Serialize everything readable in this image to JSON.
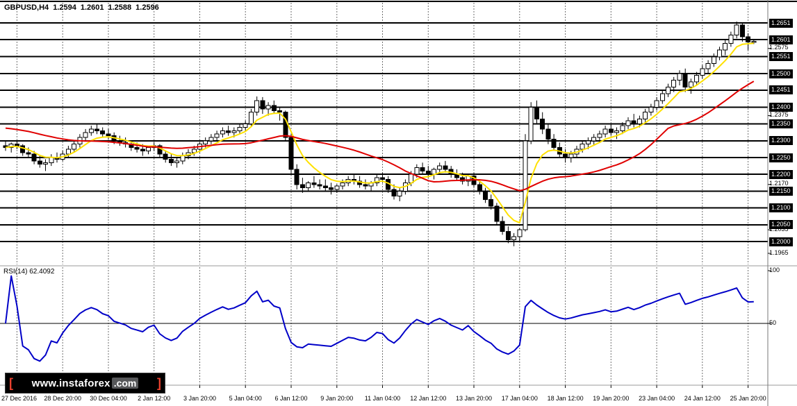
{
  "header": {
    "symbol_period": "GBPUSD,H4",
    "open": "1.2594",
    "high": "1.2601",
    "low": "1.2588",
    "close": "1.2596"
  },
  "price_axis": {
    "labels": [
      {
        "text": "1.2651",
        "price": 1.2651,
        "boxed": true
      },
      {
        "text": "1.2601",
        "price": 1.2601,
        "boxed": true
      },
      {
        "text": "1.2575",
        "price": 1.2575,
        "boxed": false
      },
      {
        "text": "1.2551",
        "price": 1.2551,
        "boxed": true
      },
      {
        "text": "1.2500",
        "price": 1.25,
        "boxed": true
      },
      {
        "text": "1.2451",
        "price": 1.2451,
        "boxed": true
      },
      {
        "text": "1.2400",
        "price": 1.24,
        "boxed": true
      },
      {
        "text": "1.2375",
        "price": 1.2375,
        "boxed": false
      },
      {
        "text": "1.2350",
        "price": 1.235,
        "boxed": true
      },
      {
        "text": "1.2300",
        "price": 1.23,
        "boxed": true
      },
      {
        "text": "1.2250",
        "price": 1.225,
        "boxed": true
      },
      {
        "text": "1.2200",
        "price": 1.22,
        "boxed": true
      },
      {
        "text": "1.2170",
        "price": 1.217,
        "boxed": false
      },
      {
        "text": "1.2150",
        "price": 1.215,
        "boxed": true
      },
      {
        "text": "1.2100",
        "price": 1.21,
        "boxed": true
      },
      {
        "text": "1.2050",
        "price": 1.205,
        "boxed": true
      },
      {
        "text": "1.2035",
        "price": 1.2035,
        "boxed": false
      },
      {
        "text": "1.2000",
        "price": 1.2,
        "boxed": true
      },
      {
        "text": "1.1965",
        "price": 1.1965,
        "boxed": false
      }
    ]
  },
  "time_axis": {
    "labels": [
      "27 Dec 2016",
      "28 Dec 20:00",
      "30 Dec 04:00",
      "2 Jan 12:00",
      "3 Jan 20:00",
      "5 Jan 04:00",
      "6 Jan 12:00",
      "9 Jan 20:00",
      "11 Jan 04:00",
      "12 Jan 12:00",
      "13 Jan 20:00",
      "17 Jan 04:00",
      "18 Jan 12:00",
      "19 Jan 20:00",
      "23 Jan 04:00",
      "24 Jan 12:00",
      "25 Jan 20:00"
    ]
  },
  "rsi": {
    "label": "RSI(14) 62.4092",
    "value": 62.4092,
    "period": 14,
    "mid_level": 50,
    "axis_labels": [
      {
        "text": "100",
        "value": 100
      },
      {
        "text": "50",
        "value": 50
      }
    ]
  },
  "logo": {
    "bracket_left": "[",
    "domain": "www.instaforex",
    "tld": ".com",
    "bracket_right": "]"
  },
  "colors": {
    "background": "#FFFFFF",
    "foreground": "#000000",
    "grid": "#6e6e6e",
    "bull": "#FFFFFF",
    "bear": "#000000",
    "level_line": "#000000",
    "ma_fast": "#FFE100",
    "ma_slow": "#E00000",
    "rsi_line": "#0000C8",
    "axis_box_bg": "#000000",
    "axis_box_text": "#FFFFFF",
    "logo_accent": "#E8402E"
  },
  "chart_data": {
    "type": "candlestick",
    "title": "GBPUSD,H4",
    "symbol": "GBPUSD",
    "timeframe": "H4",
    "visible_price_range": [
      1.193,
      1.2719
    ],
    "x_labels": [
      "27 Dec 2016",
      "28 Dec 20:00",
      "30 Dec 04:00",
      "2 Jan 12:00",
      "3 Jan 20:00",
      "5 Jan 04:00",
      "6 Jan 12:00",
      "9 Jan 20:00",
      "11 Jan 04:00",
      "12 Jan 12:00",
      "13 Jan 20:00",
      "17 Jan 04:00",
      "18 Jan 12:00",
      "19 Jan 20:00",
      "23 Jan 04:00",
      "24 Jan 12:00",
      "25 Jan 20:00"
    ],
    "grid_every_candles": 8,
    "support_resistance_levels": [
      1.2651,
      1.2601,
      1.2551,
      1.25,
      1.2451,
      1.24,
      1.235,
      1.23,
      1.225,
      1.22,
      1.215,
      1.21,
      1.205,
      1.2
    ],
    "y_axis_ticks": [
      1.2575,
      1.2375,
      1.217,
      1.2035,
      1.1965
    ],
    "overlays": [
      {
        "name": "fast-ma",
        "type": "ema",
        "period": 7,
        "color": "#FFE100"
      },
      {
        "name": "slow-ma",
        "type": "sma",
        "period": 26,
        "color": "#E00000",
        "seed": 1.234
      }
    ],
    "indicator_panel": {
      "type": "rsi",
      "period": 14,
      "current": 62.4092,
      "color": "#0000C8",
      "levels": [
        100,
        50
      ]
    },
    "ohlc": [
      [
        1.2285,
        1.23,
        1.227,
        1.228
      ],
      [
        1.228,
        1.2295,
        1.2265,
        1.229
      ],
      [
        1.229,
        1.23,
        1.2275,
        1.2285
      ],
      [
        1.2285,
        1.229,
        1.2255,
        1.2265
      ],
      [
        1.2265,
        1.228,
        1.225,
        1.226
      ],
      [
        1.226,
        1.227,
        1.223,
        1.224
      ],
      [
        1.224,
        1.2255,
        1.222,
        1.223
      ],
      [
        1.223,
        1.2245,
        1.221,
        1.2235
      ],
      [
        1.2235,
        1.226,
        1.2225,
        1.225
      ],
      [
        1.225,
        1.2265,
        1.2235,
        1.2245
      ],
      [
        1.2245,
        1.227,
        1.224,
        1.226
      ],
      [
        1.226,
        1.2285,
        1.225,
        1.2275
      ],
      [
        1.2275,
        1.23,
        1.2265,
        1.229
      ],
      [
        1.229,
        1.232,
        1.228,
        1.231
      ],
      [
        1.231,
        1.2335,
        1.23,
        1.2325
      ],
      [
        1.2325,
        1.2345,
        1.2315,
        1.2335
      ],
      [
        1.2335,
        1.235,
        1.232,
        1.233
      ],
      [
        1.233,
        1.234,
        1.231,
        1.232
      ],
      [
        1.232,
        1.2335,
        1.2305,
        1.2315
      ],
      [
        1.2315,
        1.2325,
        1.229,
        1.23
      ],
      [
        1.23,
        1.2315,
        1.2285,
        1.2295
      ],
      [
        1.2295,
        1.231,
        1.228,
        1.229
      ],
      [
        1.229,
        1.23,
        1.227,
        1.228
      ],
      [
        1.228,
        1.2295,
        1.2265,
        1.2275
      ],
      [
        1.2275,
        1.229,
        1.2255,
        1.227
      ],
      [
        1.227,
        1.2285,
        1.226,
        1.228
      ],
      [
        1.228,
        1.2295,
        1.227,
        1.2285
      ],
      [
        1.2285,
        1.229,
        1.225,
        1.226
      ],
      [
        1.226,
        1.227,
        1.2235,
        1.2245
      ],
      [
        1.2245,
        1.226,
        1.2225,
        1.2235
      ],
      [
        1.2235,
        1.225,
        1.222,
        1.224
      ],
      [
        1.224,
        1.2265,
        1.223,
        1.2255
      ],
      [
        1.2255,
        1.2275,
        1.2245,
        1.2265
      ],
      [
        1.2265,
        1.2285,
        1.2255,
        1.2275
      ],
      [
        1.2275,
        1.2295,
        1.2265,
        1.229
      ],
      [
        1.229,
        1.231,
        1.228,
        1.23
      ],
      [
        1.23,
        1.232,
        1.229,
        1.231
      ],
      [
        1.231,
        1.233,
        1.23,
        1.232
      ],
      [
        1.232,
        1.234,
        1.231,
        1.233
      ],
      [
        1.233,
        1.2345,
        1.2315,
        1.2325
      ],
      [
        1.2325,
        1.234,
        1.231,
        1.233
      ],
      [
        1.233,
        1.235,
        1.232,
        1.234
      ],
      [
        1.234,
        1.236,
        1.233,
        1.235
      ],
      [
        1.235,
        1.2395,
        1.234,
        1.2385
      ],
      [
        1.2385,
        1.2432,
        1.2375,
        1.242
      ],
      [
        1.242,
        1.243,
        1.238,
        1.2395
      ],
      [
        1.2395,
        1.2415,
        1.2375,
        1.2405
      ],
      [
        1.2405,
        1.242,
        1.238,
        1.239
      ],
      [
        1.239,
        1.24,
        1.236,
        1.2385
      ],
      [
        1.2385,
        1.239,
        1.23,
        1.231
      ],
      [
        1.231,
        1.232,
        1.22,
        1.2215
      ],
      [
        1.2215,
        1.223,
        1.2155,
        1.217
      ],
      [
        1.217,
        1.219,
        1.2145,
        1.216
      ],
      [
        1.216,
        1.218,
        1.215,
        1.2175
      ],
      [
        1.2175,
        1.2195,
        1.216,
        1.217
      ],
      [
        1.217,
        1.2185,
        1.2155,
        1.2165
      ],
      [
        1.2165,
        1.2185,
        1.215,
        1.216
      ],
      [
        1.216,
        1.2175,
        1.214,
        1.2155
      ],
      [
        1.2155,
        1.217,
        1.2145,
        1.2165
      ],
      [
        1.2165,
        1.2185,
        1.2155,
        1.2175
      ],
      [
        1.2175,
        1.2195,
        1.2165,
        1.2185
      ],
      [
        1.2185,
        1.22,
        1.217,
        1.218
      ],
      [
        1.218,
        1.2195,
        1.216,
        1.217
      ],
      [
        1.217,
        1.2185,
        1.2155,
        1.2165
      ],
      [
        1.2165,
        1.218,
        1.215,
        1.2175
      ],
      [
        1.2175,
        1.22,
        1.2165,
        1.219
      ],
      [
        1.219,
        1.2205,
        1.2175,
        1.2185
      ],
      [
        1.2185,
        1.2195,
        1.2145,
        1.2155
      ],
      [
        1.2155,
        1.217,
        1.2125,
        1.2135
      ],
      [
        1.2135,
        1.216,
        1.212,
        1.215
      ],
      [
        1.215,
        1.2185,
        1.214,
        1.2175
      ],
      [
        1.2175,
        1.221,
        1.2165,
        1.22
      ],
      [
        1.22,
        1.223,
        1.219,
        1.222
      ],
      [
        1.222,
        1.2235,
        1.22,
        1.221
      ],
      [
        1.221,
        1.2225,
        1.219,
        1.22
      ],
      [
        1.22,
        1.222,
        1.2185,
        1.2215
      ],
      [
        1.2215,
        1.2235,
        1.22,
        1.2225
      ],
      [
        1.2225,
        1.224,
        1.2205,
        1.2215
      ],
      [
        1.2215,
        1.2225,
        1.219,
        1.22
      ],
      [
        1.22,
        1.2215,
        1.218,
        1.219
      ],
      [
        1.219,
        1.2205,
        1.217,
        1.218
      ],
      [
        1.218,
        1.22,
        1.2165,
        1.2195
      ],
      [
        1.2195,
        1.2205,
        1.216,
        1.217
      ],
      [
        1.217,
        1.2185,
        1.214,
        1.215
      ],
      [
        1.215,
        1.216,
        1.2115,
        1.2125
      ],
      [
        1.2125,
        1.214,
        1.2095,
        1.2105
      ],
      [
        1.2105,
        1.2115,
        1.205,
        1.206
      ],
      [
        1.206,
        1.2075,
        1.202,
        1.203
      ],
      [
        1.203,
        1.2045,
        1.1995,
        1.2005
      ],
      [
        1.2005,
        1.2025,
        1.1986,
        1.2015
      ],
      [
        1.2015,
        1.204,
        1.2,
        1.2035
      ],
      [
        1.2035,
        1.232,
        1.203,
        1.23
      ],
      [
        1.23,
        1.2415,
        1.229,
        1.24
      ],
      [
        1.24,
        1.242,
        1.235,
        1.2365
      ],
      [
        1.2365,
        1.2385,
        1.232,
        1.2335
      ],
      [
        1.2335,
        1.235,
        1.229,
        1.2305
      ],
      [
        1.2305,
        1.232,
        1.227,
        1.228
      ],
      [
        1.228,
        1.2295,
        1.225,
        1.226
      ],
      [
        1.226,
        1.2275,
        1.2235,
        1.225
      ],
      [
        1.225,
        1.227,
        1.2235,
        1.226
      ],
      [
        1.226,
        1.2285,
        1.225,
        1.2275
      ],
      [
        1.2275,
        1.23,
        1.2265,
        1.229
      ],
      [
        1.229,
        1.231,
        1.2275,
        1.23
      ],
      [
        1.23,
        1.232,
        1.2285,
        1.231
      ],
      [
        1.231,
        1.233,
        1.2295,
        1.232
      ],
      [
        1.232,
        1.2345,
        1.231,
        1.2335
      ],
      [
        1.2335,
        1.235,
        1.2315,
        1.2325
      ],
      [
        1.2325,
        1.234,
        1.2305,
        1.233
      ],
      [
        1.233,
        1.2355,
        1.232,
        1.2345
      ],
      [
        1.2345,
        1.237,
        1.2335,
        1.236
      ],
      [
        1.236,
        1.238,
        1.234,
        1.235
      ],
      [
        1.235,
        1.2375,
        1.234,
        1.2365
      ],
      [
        1.2365,
        1.2395,
        1.2355,
        1.2385
      ],
      [
        1.2385,
        1.241,
        1.2375,
        1.24
      ],
      [
        1.24,
        1.243,
        1.239,
        1.242
      ],
      [
        1.242,
        1.245,
        1.241,
        1.244
      ],
      [
        1.244,
        1.247,
        1.243,
        1.246
      ],
      [
        1.246,
        1.249,
        1.2445,
        1.248
      ],
      [
        1.248,
        1.251,
        1.2465,
        1.25
      ],
      [
        1.25,
        1.2515,
        1.2445,
        1.246
      ],
      [
        1.246,
        1.2485,
        1.244,
        1.2475
      ],
      [
        1.2475,
        1.2505,
        1.2465,
        1.2495
      ],
      [
        1.2495,
        1.2525,
        1.2485,
        1.2515
      ],
      [
        1.2515,
        1.254,
        1.25,
        1.253
      ],
      [
        1.253,
        1.256,
        1.252,
        1.255
      ],
      [
        1.255,
        1.258,
        1.254,
        1.257
      ],
      [
        1.257,
        1.26,
        1.2555,
        1.259
      ],
      [
        1.259,
        1.2625,
        1.258,
        1.2615
      ],
      [
        1.2615,
        1.2655,
        1.2605,
        1.2645
      ],
      [
        1.2645,
        1.2652,
        1.2595,
        1.261
      ],
      [
        1.261,
        1.262,
        1.257,
        1.2594
      ],
      [
        1.2594,
        1.2601,
        1.2588,
        1.2596
      ]
    ]
  }
}
